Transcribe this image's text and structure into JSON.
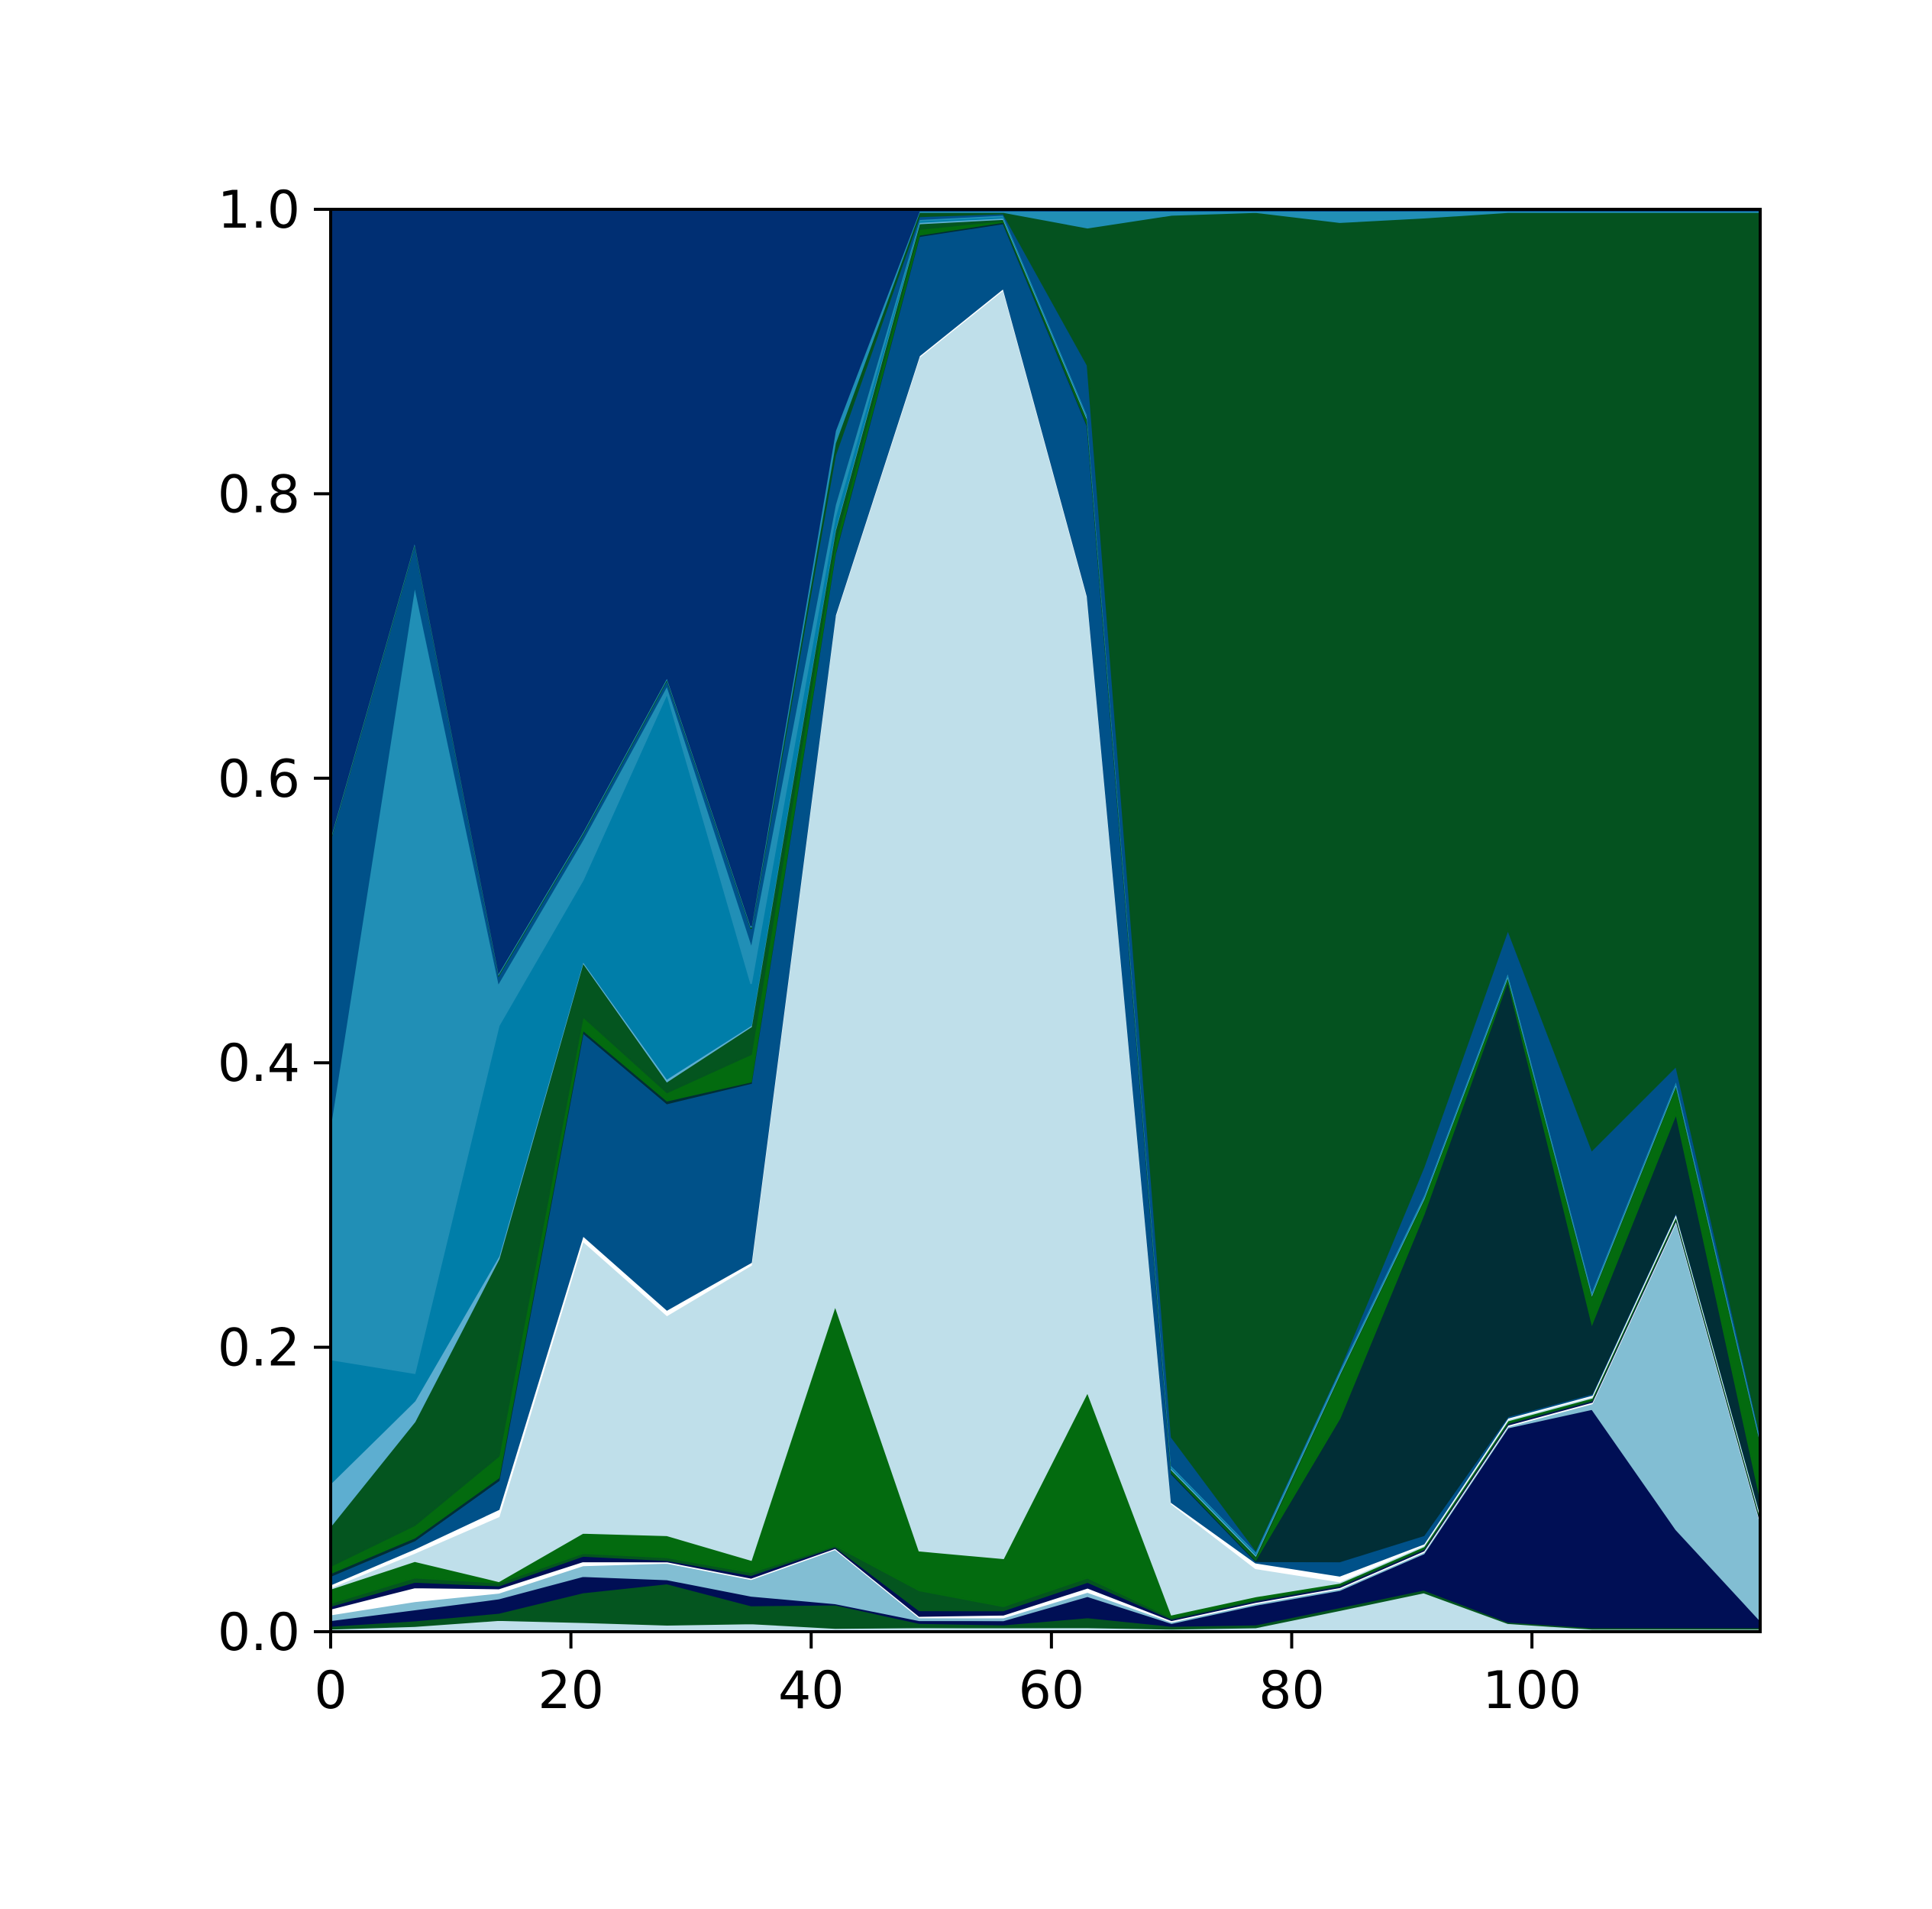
{
  "chart_data": {
    "type": "area",
    "stacked": true,
    "normalized": true,
    "title": "",
    "xlabel": "",
    "ylabel": "",
    "xlim": [
      0,
      119
    ],
    "ylim": [
      0,
      1
    ],
    "x_ticks": [
      0,
      20,
      40,
      60,
      80,
      100
    ],
    "y_ticks": [
      0.0,
      0.2,
      0.4,
      0.6,
      0.8,
      1.0
    ],
    "x_tick_labels": [
      "0",
      "20",
      "40",
      "60",
      "80",
      "100"
    ],
    "y_tick_labels": [
      "0.0",
      "0.2",
      "0.4",
      "0.6",
      "0.8",
      "1.0"
    ],
    "grid": false,
    "legend": "none",
    "x": [
      0,
      7,
      14,
      21,
      28,
      35,
      42,
      49,
      56,
      63,
      70,
      77,
      84,
      91,
      98,
      105,
      112,
      119
    ],
    "series": [
      {
        "color": "#bfdfea",
        "values": [
          0.002,
          0.004,
          0.008,
          0.007,
          0.005,
          0.006,
          0.003,
          0.003,
          0.003,
          0.003,
          0.002,
          0.003,
          0.015,
          0.028,
          0.006,
          0.002,
          0.002,
          0.002
        ]
      },
      {
        "color": "#04551f",
        "values": [
          0.002,
          0.004,
          0.005,
          0.022,
          0.03,
          0.013,
          0.019,
          0.003,
          0.002,
          0.007,
          0.002,
          0.002,
          0.002,
          0.002,
          0.001,
          0.001,
          0.001,
          0.001
        ]
      },
      {
        "color": "#000f55",
        "values": [
          0.004,
          0.008,
          0.01,
          0.012,
          0.003,
          0.007,
          0.001,
          0.002,
          0.003,
          0.015,
          0.002,
          0.014,
          0.012,
          0.026,
          0.138,
          0.156,
          0.07,
          0.005
        ]
      },
      {
        "color": "#82bed3",
        "values": [
          0.004,
          0.006,
          0.004,
          0.008,
          0.012,
          0.012,
          0.044,
          0.002,
          0.002,
          0.003,
          0.001,
          0.001,
          0.001,
          0.001,
          0.001,
          0.004,
          0.22,
          0.07
        ]
      },
      {
        "color": "#ffffff",
        "values": [
          0.004,
          0.01,
          0.003,
          0.003,
          0.001,
          0.001,
          0.001,
          0.001,
          0.002,
          0.003,
          0.001,
          0.001,
          0.001,
          0.001,
          0.001,
          0.001,
          0.001,
          0.001
        ]
      },
      {
        "color": "#000f55",
        "values": [
          0.002,
          0.004,
          0.002,
          0.004,
          0.001,
          0.002,
          0.001,
          0.004,
          0.003,
          0.004,
          0.001,
          0.001,
          0.001,
          0.001,
          0.001,
          0.001,
          0.001,
          0.001
        ]
      },
      {
        "color": "#04551f",
        "values": [
          0.002,
          0.003,
          0.002,
          0.002,
          0.002,
          0.002,
          0.001,
          0.014,
          0.003,
          0.003,
          0.001,
          0.001,
          0.001,
          0.001,
          0.001,
          0.001,
          0.001,
          0.001
        ]
      },
      {
        "color": "#036b0f",
        "values": [
          0.01,
          0.012,
          0.001,
          0.015,
          0.016,
          0.009,
          0.195,
          0.028,
          0.034,
          0.131,
          0.002,
          0.002,
          0.001,
          0.001,
          0.001,
          0.001,
          0.001,
          0.001
        ]
      },
      {
        "color": "#bfdfea",
        "values": [
          0.001,
          0.006,
          0.045,
          0.216,
          0.16,
          0.214,
          0.56,
          0.84,
          0.9,
          0.56,
          0.078,
          0.02,
          0.001,
          0.001,
          0.001,
          0.001,
          0.001,
          0.001
        ]
      },
      {
        "color": "#ffffff",
        "values": [
          0.002,
          0.003,
          0.005,
          0.004,
          0.004,
          0.002,
          0.001,
          0.001,
          0.001,
          0.001,
          0.001,
          0.004,
          0.004,
          0.001,
          0.001,
          0.001,
          0.001,
          0.001
        ]
      },
      {
        "color": "#005189",
        "values": [
          0.006,
          0.006,
          0.02,
          0.15,
          0.15,
          0.13,
          0.05,
          0.084,
          0.046,
          0.12,
          0.02,
          0.001,
          0.01,
          0.006,
          0.001,
          0.001,
          0.001,
          0.001
        ]
      },
      {
        "color": "#012e36",
        "values": [
          0.002,
          0.002,
          0.002,
          0.002,
          0.002,
          0.001,
          0.001,
          0.001,
          0.001,
          0.001,
          0.001,
          0.001,
          0.1,
          0.23,
          0.31,
          0.05,
          0.07,
          0.01
        ]
      },
      {
        "color": "#036b0f",
        "values": [
          0.005,
          0.009,
          0.015,
          0.01,
          0.006,
          0.02,
          0.008,
          0.004,
          0.001,
          0.002,
          0.001,
          0.001,
          0.03,
          0.01,
          0.002,
          0.02,
          0.02,
          0.04
        ]
      },
      {
        "color": "#04551f",
        "values": [
          0.028,
          0.075,
          0.137,
          0.04,
          0.008,
          0.02,
          0.01,
          0.004,
          0.001,
          0.002,
          0.001,
          0.002,
          0.001,
          0.001,
          0.001,
          0.001,
          0.001,
          0.001
        ]
      },
      {
        "color": "#5daed0",
        "values": [
          0.03,
          0.015,
          0.002,
          0.001,
          0.002,
          0.001,
          0.001,
          0.001,
          0.001,
          0.001,
          0.001,
          0.001,
          0.001,
          0.001,
          0.001,
          0.001,
          0.001,
          0.001
        ]
      },
      {
        "color": "#007ea9",
        "values": [
          0.087,
          0.02,
          0.16,
          0.06,
          0.28,
          0.03,
          0.01,
          0.001,
          0.001,
          0.001,
          0.001,
          0.001,
          0.001,
          0.001,
          0.001,
          0.001,
          0.001,
          0.001
        ]
      },
      {
        "color": "#218fb6",
        "values": [
          0.165,
          0.57,
          0.03,
          0.03,
          0.006,
          0.03,
          0.01,
          0.001,
          0.001,
          0.001,
          0.001,
          0.001,
          0.001,
          0.001,
          0.001,
          0.001,
          0.001,
          0.001
        ]
      },
      {
        "color": "#005189",
        "values": [
          0.2,
          0.03,
          0.005,
          0.004,
          0.004,
          0.01,
          0.04,
          0.002,
          0.001,
          0.035,
          0.02,
          0.001,
          0.001,
          0.02,
          0.03,
          0.1,
          0.01,
          0.001
        ]
      },
      {
        "color": "#04521f",
        "values": [
          0.001,
          0.001,
          0.001,
          0.001,
          0.001,
          0.001,
          0.01,
          0.003,
          0.001,
          0.097,
          0.86,
          0.95,
          0.8,
          0.68,
          0.51,
          0.67,
          0.61,
          0.87
        ]
      },
      {
        "color": "#218fb6",
        "values": [
          0.001,
          0.001,
          0.001,
          0.001,
          0.001,
          0.001,
          0.01,
          0.001,
          0.001,
          0.012,
          0.003,
          0.001,
          0.008,
          0.005,
          0.001,
          0.001,
          0.001,
          0.001
        ]
      },
      {
        "color": "#002f73",
        "values": [
          0.44,
          0.24,
          0.53,
          0.46,
          0.34,
          0.52,
          0.18,
          0.001,
          0.001,
          0.001,
          0.001,
          0.001,
          0.001,
          0.001,
          0.001,
          0.001,
          0.001,
          0.001
        ]
      }
    ]
  }
}
